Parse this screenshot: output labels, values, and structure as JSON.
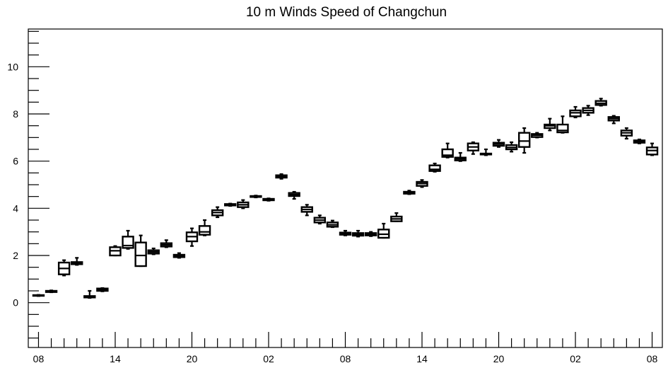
{
  "chart_data": {
    "type": "box",
    "title": "10 m Winds Speed of Changchun",
    "xlabel": "",
    "ylabel": "",
    "ylim": [
      -1.9,
      11.6
    ],
    "yticks": [
      0,
      2,
      4,
      6,
      8,
      10
    ],
    "x_tick_labels": [
      "08",
      "14",
      "20",
      "02",
      "08",
      "14",
      "20",
      "02",
      "08"
    ],
    "x_tick_positions": [
      0,
      6,
      12,
      18,
      24,
      30,
      36,
      42,
      48
    ],
    "xlim": [
      -0.8,
      48.8
    ],
    "grid": false,
    "legend": "none",
    "boxes": [
      {
        "x": 0,
        "min": 0.28,
        "q1": 0.29,
        "median": 0.3,
        "q3": 0.32,
        "max": 0.33
      },
      {
        "x": 1,
        "min": 0.44,
        "q1": 0.45,
        "median": 0.48,
        "q3": 0.5,
        "max": 0.52
      },
      {
        "x": 2,
        "min": 1.15,
        "q1": 1.2,
        "median": 1.45,
        "q3": 1.7,
        "max": 1.8
      },
      {
        "x": 3,
        "min": 1.6,
        "q1": 1.63,
        "median": 1.66,
        "q3": 1.72,
        "max": 1.9
      },
      {
        "x": 4,
        "min": 0.2,
        "q1": 0.22,
        "median": 0.25,
        "q3": 0.28,
        "max": 0.5
      },
      {
        "x": 5,
        "min": 0.48,
        "q1": 0.5,
        "median": 0.55,
        "q3": 0.6,
        "max": 0.62
      },
      {
        "x": 6,
        "min": 2.0,
        "q1": 2.0,
        "median": 2.2,
        "q3": 2.35,
        "max": 2.4
      },
      {
        "x": 7,
        "min": 2.28,
        "q1": 2.32,
        "median": 2.42,
        "q3": 2.8,
        "max": 3.05
      },
      {
        "x": 8,
        "min": 1.55,
        "q1": 1.55,
        "median": 2.0,
        "q3": 2.55,
        "max": 2.85
      },
      {
        "x": 9,
        "min": 2.05,
        "q1": 2.08,
        "median": 2.15,
        "q3": 2.22,
        "max": 2.3
      },
      {
        "x": 10,
        "min": 2.35,
        "q1": 2.38,
        "median": 2.45,
        "q3": 2.52,
        "max": 2.65
      },
      {
        "x": 11,
        "min": 1.9,
        "q1": 1.93,
        "median": 1.98,
        "q3": 2.03,
        "max": 2.1
      },
      {
        "x": 12,
        "min": 2.4,
        "q1": 2.6,
        "median": 2.8,
        "q3": 2.98,
        "max": 3.15
      },
      {
        "x": 13,
        "min": 2.85,
        "q1": 2.88,
        "median": 3.0,
        "q3": 3.25,
        "max": 3.5
      },
      {
        "x": 14,
        "min": 3.62,
        "q1": 3.7,
        "median": 3.82,
        "q3": 3.92,
        "max": 4.05
      },
      {
        "x": 15,
        "min": 4.1,
        "q1": 4.12,
        "median": 4.15,
        "q3": 4.18,
        "max": 4.2
      },
      {
        "x": 16,
        "min": 4.0,
        "q1": 4.05,
        "median": 4.15,
        "q3": 4.25,
        "max": 4.35
      },
      {
        "x": 17,
        "min": 4.46,
        "q1": 4.48,
        "median": 4.5,
        "q3": 4.52,
        "max": 4.54
      },
      {
        "x": 18,
        "min": 4.32,
        "q1": 4.34,
        "median": 4.37,
        "q3": 4.4,
        "max": 4.42
      },
      {
        "x": 19,
        "min": 5.25,
        "q1": 5.3,
        "median": 5.36,
        "q3": 5.4,
        "max": 5.45
      },
      {
        "x": 20,
        "min": 4.4,
        "q1": 4.52,
        "median": 4.58,
        "q3": 4.65,
        "max": 4.7
      },
      {
        "x": 21,
        "min": 3.7,
        "q1": 3.85,
        "median": 3.95,
        "q3": 4.05,
        "max": 4.15
      },
      {
        "x": 22,
        "min": 3.35,
        "q1": 3.4,
        "median": 3.5,
        "q3": 3.6,
        "max": 3.7
      },
      {
        "x": 23,
        "min": 3.2,
        "q1": 3.22,
        "median": 3.3,
        "q3": 3.4,
        "max": 3.48
      },
      {
        "x": 24,
        "min": 2.85,
        "q1": 2.88,
        "median": 2.93,
        "q3": 2.97,
        "max": 3.05
      },
      {
        "x": 25,
        "min": 2.8,
        "q1": 2.84,
        "median": 2.9,
        "q3": 2.95,
        "max": 3.05
      },
      {
        "x": 26,
        "min": 2.82,
        "q1": 2.85,
        "median": 2.9,
        "q3": 2.95,
        "max": 3.0
      },
      {
        "x": 27,
        "min": 2.75,
        "q1": 2.75,
        "median": 2.9,
        "q3": 3.1,
        "max": 3.35
      },
      {
        "x": 28,
        "min": 3.45,
        "q1": 3.45,
        "median": 3.55,
        "q3": 3.65,
        "max": 3.8
      },
      {
        "x": 29,
        "min": 4.6,
        "q1": 4.62,
        "median": 4.66,
        "q3": 4.7,
        "max": 4.75
      },
      {
        "x": 30,
        "min": 4.9,
        "q1": 4.95,
        "median": 5.05,
        "q3": 5.12,
        "max": 5.2
      },
      {
        "x": 31,
        "min": 5.55,
        "q1": 5.58,
        "median": 5.65,
        "q3": 5.82,
        "max": 5.9
      },
      {
        "x": 32,
        "min": 6.15,
        "q1": 6.18,
        "median": 6.25,
        "q3": 6.5,
        "max": 6.75
      },
      {
        "x": 33,
        "min": 6.0,
        "q1": 6.03,
        "median": 6.1,
        "q3": 6.15,
        "max": 6.35
      },
      {
        "x": 34,
        "min": 6.3,
        "q1": 6.45,
        "median": 6.6,
        "q3": 6.75,
        "max": 6.8
      },
      {
        "x": 35,
        "min": 6.25,
        "q1": 6.28,
        "median": 6.3,
        "q3": 6.32,
        "max": 6.5
      },
      {
        "x": 36,
        "min": 6.6,
        "q1": 6.65,
        "median": 6.72,
        "q3": 6.78,
        "max": 6.9
      },
      {
        "x": 37,
        "min": 6.4,
        "q1": 6.5,
        "median": 6.58,
        "q3": 6.68,
        "max": 6.8
      },
      {
        "x": 38,
        "min": 6.35,
        "q1": 6.6,
        "median": 6.85,
        "q3": 7.2,
        "max": 7.4
      },
      {
        "x": 39,
        "min": 7.0,
        "q1": 7.02,
        "median": 7.1,
        "q3": 7.15,
        "max": 7.2
      },
      {
        "x": 40,
        "min": 7.3,
        "q1": 7.4,
        "median": 7.5,
        "q3": 7.55,
        "max": 7.8
      },
      {
        "x": 41,
        "min": 7.2,
        "q1": 7.22,
        "median": 7.3,
        "q3": 7.55,
        "max": 7.9
      },
      {
        "x": 42,
        "min": 7.85,
        "q1": 7.9,
        "median": 8.05,
        "q3": 8.15,
        "max": 8.3
      },
      {
        "x": 43,
        "min": 7.95,
        "q1": 8.05,
        "median": 8.15,
        "q3": 8.25,
        "max": 8.35
      },
      {
        "x": 44,
        "min": 8.35,
        "q1": 8.38,
        "median": 8.45,
        "q3": 8.55,
        "max": 8.65
      },
      {
        "x": 45,
        "min": 7.6,
        "q1": 7.72,
        "median": 7.8,
        "q3": 7.87,
        "max": 7.92
      },
      {
        "x": 46,
        "min": 6.95,
        "q1": 7.08,
        "median": 7.2,
        "q3": 7.3,
        "max": 7.4
      },
      {
        "x": 47,
        "min": 6.75,
        "q1": 6.78,
        "median": 6.82,
        "q3": 6.88,
        "max": 6.92
      },
      {
        "x": 48,
        "min": 6.25,
        "q1": 6.28,
        "median": 6.45,
        "q3": 6.58,
        "max": 6.75
      }
    ]
  }
}
